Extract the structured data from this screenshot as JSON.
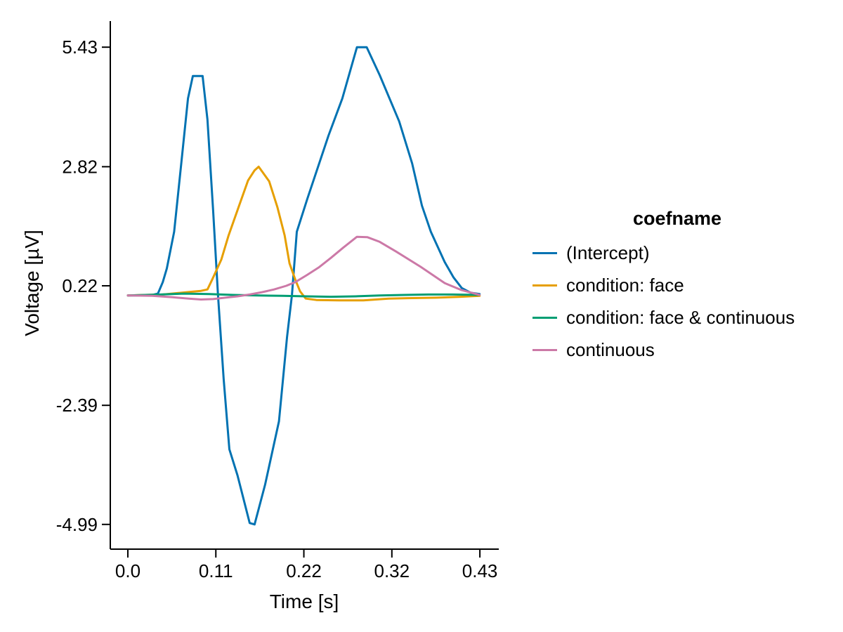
{
  "figure": {
    "background": "#ffffff",
    "text_color": "#000000"
  },
  "chart_data": {
    "type": "line",
    "title": "",
    "xlabel": "Time [s]",
    "ylabel": "Voltage [µV]",
    "xlim": [
      -0.0216,
      0.4566
    ],
    "ylim": [
      -5.53,
      6.0
    ],
    "grid": false,
    "legend_title": "coefname",
    "legend_position": "right",
    "axis_color": "#000000",
    "xticks": [
      {
        "value": 0.0,
        "label": "0.0"
      },
      {
        "value": 0.10833,
        "label": "0.11"
      },
      {
        "value": 0.21667,
        "label": "0.22"
      },
      {
        "value": 0.325,
        "label": "0.32"
      },
      {
        "value": 0.43333,
        "label": "0.43"
      }
    ],
    "yticks": [
      {
        "value": 5.43,
        "label": "5.43"
      },
      {
        "value": 2.82,
        "label": "2.82"
      },
      {
        "value": 0.22,
        "label": "0.22"
      },
      {
        "value": -2.39,
        "label": "-2.39"
      },
      {
        "value": -4.99,
        "label": "-4.99"
      }
    ],
    "series": [
      {
        "name": "(Intercept)",
        "color": "#0072B2",
        "points": [
          [
            0,
            0.01
          ],
          [
            0.01,
            0.01
          ],
          [
            0.02,
            0.01
          ],
          [
            0.03,
            0.02
          ],
          [
            0.037,
            0.05
          ],
          [
            0.043,
            0.3
          ],
          [
            0.048,
            0.6
          ],
          [
            0.057,
            1.4
          ],
          [
            0.066,
            2.93
          ],
          [
            0.074,
            4.31
          ],
          [
            0.08,
            4.8
          ],
          [
            0.092,
            4.8
          ],
          [
            0.098,
            3.85
          ],
          [
            0.105,
            1.86
          ],
          [
            0.111,
            0.02
          ],
          [
            0.118,
            -1.82
          ],
          [
            0.125,
            -3.35
          ],
          [
            0.135,
            -3.92
          ],
          [
            0.15,
            -4.96
          ],
          [
            0.156,
            -4.99
          ],
          [
            0.169,
            -4.12
          ],
          [
            0.186,
            -2.74
          ],
          [
            0.196,
            -0.9
          ],
          [
            0.202,
            0.02
          ],
          [
            0.208,
            1.4
          ],
          [
            0.221,
            2.12
          ],
          [
            0.247,
            3.5
          ],
          [
            0.264,
            4.31
          ],
          [
            0.282,
            5.43
          ],
          [
            0.294,
            5.43
          ],
          [
            0.31,
            4.82
          ],
          [
            0.334,
            3.81
          ],
          [
            0.35,
            2.89
          ],
          [
            0.362,
            1.97
          ],
          [
            0.373,
            1.4
          ],
          [
            0.39,
            0.74
          ],
          [
            0.401,
            0.4
          ],
          [
            0.411,
            0.17
          ],
          [
            0.422,
            0.07
          ],
          [
            0.433,
            0.04
          ]
        ]
      },
      {
        "name": "condition: face",
        "color": "#E69F00",
        "points": [
          [
            0,
            0.01
          ],
          [
            0.02,
            0.02
          ],
          [
            0.043,
            0.03
          ],
          [
            0.061,
            0.06
          ],
          [
            0.078,
            0.09
          ],
          [
            0.09,
            0.11
          ],
          [
            0.098,
            0.14
          ],
          [
            0.104,
            0.36
          ],
          [
            0.115,
            0.79
          ],
          [
            0.124,
            1.32
          ],
          [
            0.137,
            1.97
          ],
          [
            0.148,
            2.52
          ],
          [
            0.156,
            2.74
          ],
          [
            0.161,
            2.82
          ],
          [
            0.174,
            2.5
          ],
          [
            0.184,
            1.94
          ],
          [
            0.193,
            1.32
          ],
          [
            0.199,
            0.71
          ],
          [
            0.206,
            0.36
          ],
          [
            0.212,
            0.1
          ],
          [
            0.219,
            -0.06
          ],
          [
            0.232,
            -0.09
          ],
          [
            0.26,
            -0.1
          ],
          [
            0.29,
            -0.1
          ],
          [
            0.321,
            -0.06
          ],
          [
            0.344,
            -0.05
          ],
          [
            0.38,
            -0.04
          ],
          [
            0.41,
            -0.02
          ],
          [
            0.433,
            0
          ]
        ]
      },
      {
        "name": "condition: face & continuous",
        "color": "#009E73",
        "points": [
          [
            0,
            0.01
          ],
          [
            0.04,
            0.03
          ],
          [
            0.07,
            0.05
          ],
          [
            0.1,
            0.04
          ],
          [
            0.13,
            0.02
          ],
          [
            0.16,
            0.01
          ],
          [
            0.19,
            0
          ],
          [
            0.22,
            -0.01
          ],
          [
            0.25,
            -0.02
          ],
          [
            0.28,
            -0.01
          ],
          [
            0.31,
            0.01
          ],
          [
            0.34,
            0.02
          ],
          [
            0.37,
            0.03
          ],
          [
            0.4,
            0.03
          ],
          [
            0.433,
            0.02
          ]
        ]
      },
      {
        "name": "continuous",
        "color": "#CC79A7",
        "points": [
          [
            0,
            0.01
          ],
          [
            0.03,
            0
          ],
          [
            0.055,
            -0.03
          ],
          [
            0.075,
            -0.06
          ],
          [
            0.09,
            -0.08
          ],
          [
            0.105,
            -0.07
          ],
          [
            0.12,
            -0.04
          ],
          [
            0.135,
            -0.01
          ],
          [
            0.15,
            0.03
          ],
          [
            0.165,
            0.08
          ],
          [
            0.18,
            0.14
          ],
          [
            0.195,
            0.22
          ],
          [
            0.206,
            0.3
          ],
          [
            0.22,
            0.45
          ],
          [
            0.235,
            0.62
          ],
          [
            0.25,
            0.83
          ],
          [
            0.265,
            1.05
          ],
          [
            0.282,
            1.29
          ],
          [
            0.295,
            1.28
          ],
          [
            0.31,
            1.18
          ],
          [
            0.33,
            0.97
          ],
          [
            0.36,
            0.64
          ],
          [
            0.39,
            0.28
          ],
          [
            0.41,
            0.13
          ],
          [
            0.433,
            0.02
          ]
        ]
      }
    ]
  }
}
